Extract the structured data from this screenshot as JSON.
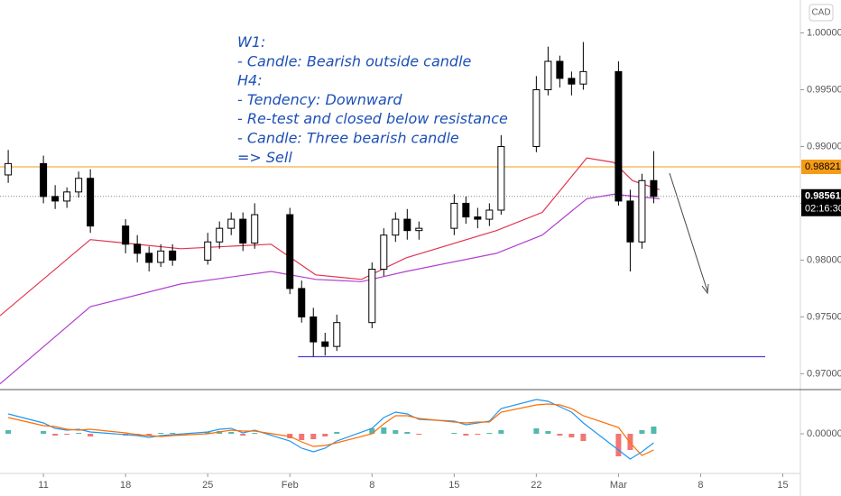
{
  "currency": "CAD",
  "chart_data": [
    {
      "type": "candlestick",
      "annotation": [
        "W1:",
        "- Candle: Bearish outside candle",
        "H4:",
        "- Tendency: Downward",
        "- Re-test and closed below resistance",
        "- Candle: Three bearish candle",
        "=> Sell"
      ],
      "x": [
        8,
        11,
        12,
        13,
        14,
        15,
        18,
        19,
        20,
        21,
        22,
        25,
        26,
        27,
        28,
        29,
        32,
        33,
        34,
        35,
        36,
        39,
        40,
        41,
        42,
        43,
        46,
        47,
        48,
        49,
        50,
        53,
        54,
        55,
        56,
        57,
        60,
        61,
        62,
        63
      ],
      "open": [
        0.9875,
        0.9885,
        0.9856,
        0.9852,
        0.986,
        0.9872,
        0.983,
        0.9814,
        0.9806,
        0.9798,
        0.9808,
        0.98,
        0.9816,
        0.9828,
        0.9836,
        0.9815,
        0.984,
        0.9775,
        0.975,
        0.9728,
        0.9724,
        0.9745,
        0.9792,
        0.9822,
        0.9836,
        0.9826,
        0.9828,
        0.985,
        0.9838,
        0.9836,
        0.9844,
        0.99,
        0.995,
        0.9975,
        0.996,
        0.9955,
        0.9966,
        0.9852,
        0.9816,
        0.987
      ],
      "high": [
        0.9897,
        0.9892,
        0.9866,
        0.9864,
        0.9878,
        0.988,
        0.9836,
        0.9822,
        0.9812,
        0.9814,
        0.9814,
        0.9824,
        0.9834,
        0.9842,
        0.9842,
        0.985,
        0.9846,
        0.9782,
        0.9758,
        0.9736,
        0.9752,
        0.9798,
        0.9828,
        0.9842,
        0.9845,
        0.9834,
        0.9858,
        0.9856,
        0.9846,
        0.985,
        0.991,
        0.9962,
        0.9988,
        0.998,
        0.9966,
        0.9992,
        0.9975,
        0.9862,
        0.9876,
        0.9896
      ],
      "low": [
        0.9868,
        0.985,
        0.9845,
        0.9846,
        0.9855,
        0.9824,
        0.9806,
        0.9798,
        0.979,
        0.9794,
        0.9795,
        0.9796,
        0.981,
        0.9822,
        0.9808,
        0.981,
        0.977,
        0.9745,
        0.9715,
        0.9716,
        0.972,
        0.974,
        0.9786,
        0.9816,
        0.9818,
        0.9818,
        0.9822,
        0.9832,
        0.9828,
        0.983,
        0.984,
        0.9895,
        0.9945,
        0.9952,
        0.9945,
        0.995,
        0.9848,
        0.979,
        0.981,
        0.985
      ],
      "close": [
        0.9885,
        0.9856,
        0.9852,
        0.986,
        0.9872,
        0.983,
        0.9814,
        0.9806,
        0.9798,
        0.9808,
        0.98,
        0.9816,
        0.9828,
        0.9836,
        0.9815,
        0.984,
        0.9775,
        0.975,
        0.9728,
        0.9724,
        0.9745,
        0.9792,
        0.9822,
        0.9836,
        0.9826,
        0.9828,
        0.985,
        0.9838,
        0.9836,
        0.9844,
        0.99,
        0.995,
        0.9975,
        0.996,
        0.9955,
        0.9966,
        0.9852,
        0.9816,
        0.987,
        0.98561
      ],
      "up_color": "#ffffff",
      "down_color": "#000000",
      "lines": [
        {
          "color": "#e0344f",
          "x": [
            7.3,
            15,
            22.7,
            30.4,
            34.2,
            38.1,
            41.9,
            49.6,
            53.5,
            57.3,
            59.6,
            61.2,
            63.5
          ],
          "values": [
            0.9751,
            0.9818,
            0.981,
            0.9814,
            0.9787,
            0.9783,
            0.9802,
            0.9826,
            0.9842,
            0.989,
            0.9886,
            0.987,
            0.9862
          ]
        },
        {
          "color": "#b13fd0",
          "x": [
            7.3,
            15,
            22.7,
            30.4,
            34.2,
            38.1,
            41.9,
            49.6,
            53.5,
            57.3,
            59.6,
            63.5
          ],
          "values": [
            0.9691,
            0.9759,
            0.9779,
            0.979,
            0.9783,
            0.9781,
            0.979,
            0.9806,
            0.9822,
            0.9854,
            0.9858,
            0.9854
          ]
        }
      ],
      "price_line": {
        "value": 0.98821,
        "label": "0.98821",
        "color": "#f59b15"
      },
      "last_price": {
        "value": 0.98561,
        "label": "0.98561",
        "countdown": "02:16:30"
      },
      "support": {
        "value": 0.9715,
        "x": [
          32.7,
          72.5
        ],
        "color": "#4a3fd6"
      },
      "xlim": [
        7.3,
        75.5
      ],
      "xticks": [
        {
          "value": 11,
          "label": "11"
        },
        {
          "value": 18,
          "label": "18"
        },
        {
          "value": 25,
          "label": "25"
        },
        {
          "value": 32,
          "label": "Feb"
        },
        {
          "value": 39,
          "label": "8"
        },
        {
          "value": 46,
          "label": "15"
        },
        {
          "value": 53,
          "label": "22"
        },
        {
          "value": 60,
          "label": "Mar"
        },
        {
          "value": 67,
          "label": "8"
        },
        {
          "value": 74,
          "label": "15"
        }
      ],
      "ylim": [
        0.9686,
        1.0029
      ],
      "yticks": [
        {
          "value": 0.97,
          "label": "0.97000"
        },
        {
          "value": 0.975,
          "label": "0.97500"
        },
        {
          "value": 0.98,
          "label": "0.98000"
        },
        {
          "value": 0.985,
          "label": "0.98500"
        },
        {
          "value": 0.99,
          "label": "0.99000"
        },
        {
          "value": 0.995,
          "label": "0.99500"
        },
        {
          "value": 1.0,
          "label": "1.00000"
        }
      ]
    },
    {
      "type": "macd",
      "x": [
        8,
        11,
        12,
        13,
        14,
        15,
        18,
        19,
        20,
        21,
        22,
        25,
        26,
        27,
        28,
        29,
        32,
        33,
        34,
        35,
        36,
        39,
        40,
        41,
        42,
        43,
        46,
        47,
        48,
        49,
        50,
        53,
        54,
        55,
        56,
        57,
        60,
        61,
        62,
        63
      ],
      "histogram": [
        0.0004,
        0.0003,
        -0.0002,
        -0.0001,
        0.0001,
        -0.0003,
        -0.0002,
        -0.0001,
        -0.0002,
        0.0001,
        0.0001,
        0.0002,
        0.0003,
        0.0002,
        -0.0002,
        0.0001,
        -0.0005,
        -0.0007,
        -0.0006,
        -0.0003,
        0.0002,
        0.0006,
        0.0007,
        0.0004,
        0.0002,
        -0.0001,
        0.0001,
        -0.0002,
        -0.0001,
        0.0001,
        0.0004,
        0.0006,
        0.0003,
        -0.0002,
        -0.0004,
        -0.0008,
        -0.0025,
        -0.0018,
        0.0004,
        0.0008
      ],
      "positive_color": "#26a69a",
      "negative_color": "#ef5350",
      "series": [
        {
          "color": "#2196f3",
          "values": [
            0.0022,
            0.0012,
            0.0006,
            0.0004,
            0.0005,
            0.0002,
            -0.0001,
            -0.0002,
            -0.0004,
            -0.0002,
            -0.0001,
            0.0002,
            0.0005,
            0.0006,
            0.0001,
            0.0004,
            -0.0008,
            -0.0016,
            -0.002,
            -0.0016,
            -0.0008,
            0.0006,
            0.0018,
            0.0024,
            0.0022,
            0.0016,
            0.0014,
            0.001,
            0.0012,
            0.0014,
            0.0028,
            0.0038,
            0.0036,
            0.003,
            0.0024,
            0.0012,
            -0.0018,
            -0.0028,
            -0.002,
            -0.001
          ]
        },
        {
          "color": "#ff6d00",
          "values": [
            0.0018,
            0.0009,
            0.0008,
            0.0005,
            0.0004,
            0.0005,
            0.0001,
            -0.0001,
            -0.0002,
            -0.0003,
            -0.0002,
            0.0,
            0.0002,
            0.0004,
            0.0003,
            0.0003,
            -0.0003,
            -0.0009,
            -0.0014,
            -0.0013,
            -0.001,
            0.0,
            0.0011,
            0.002,
            0.002,
            0.0017,
            0.0013,
            0.0012,
            0.0013,
            0.0013,
            0.0024,
            0.0032,
            0.0033,
            0.0032,
            0.0028,
            0.002,
            0.0007,
            -0.001,
            -0.0024,
            -0.0018
          ]
        }
      ],
      "ylim": [
        -0.0044,
        0.0049
      ],
      "yticks": [
        {
          "value": 0,
          "label": "0.00000"
        }
      ]
    }
  ]
}
